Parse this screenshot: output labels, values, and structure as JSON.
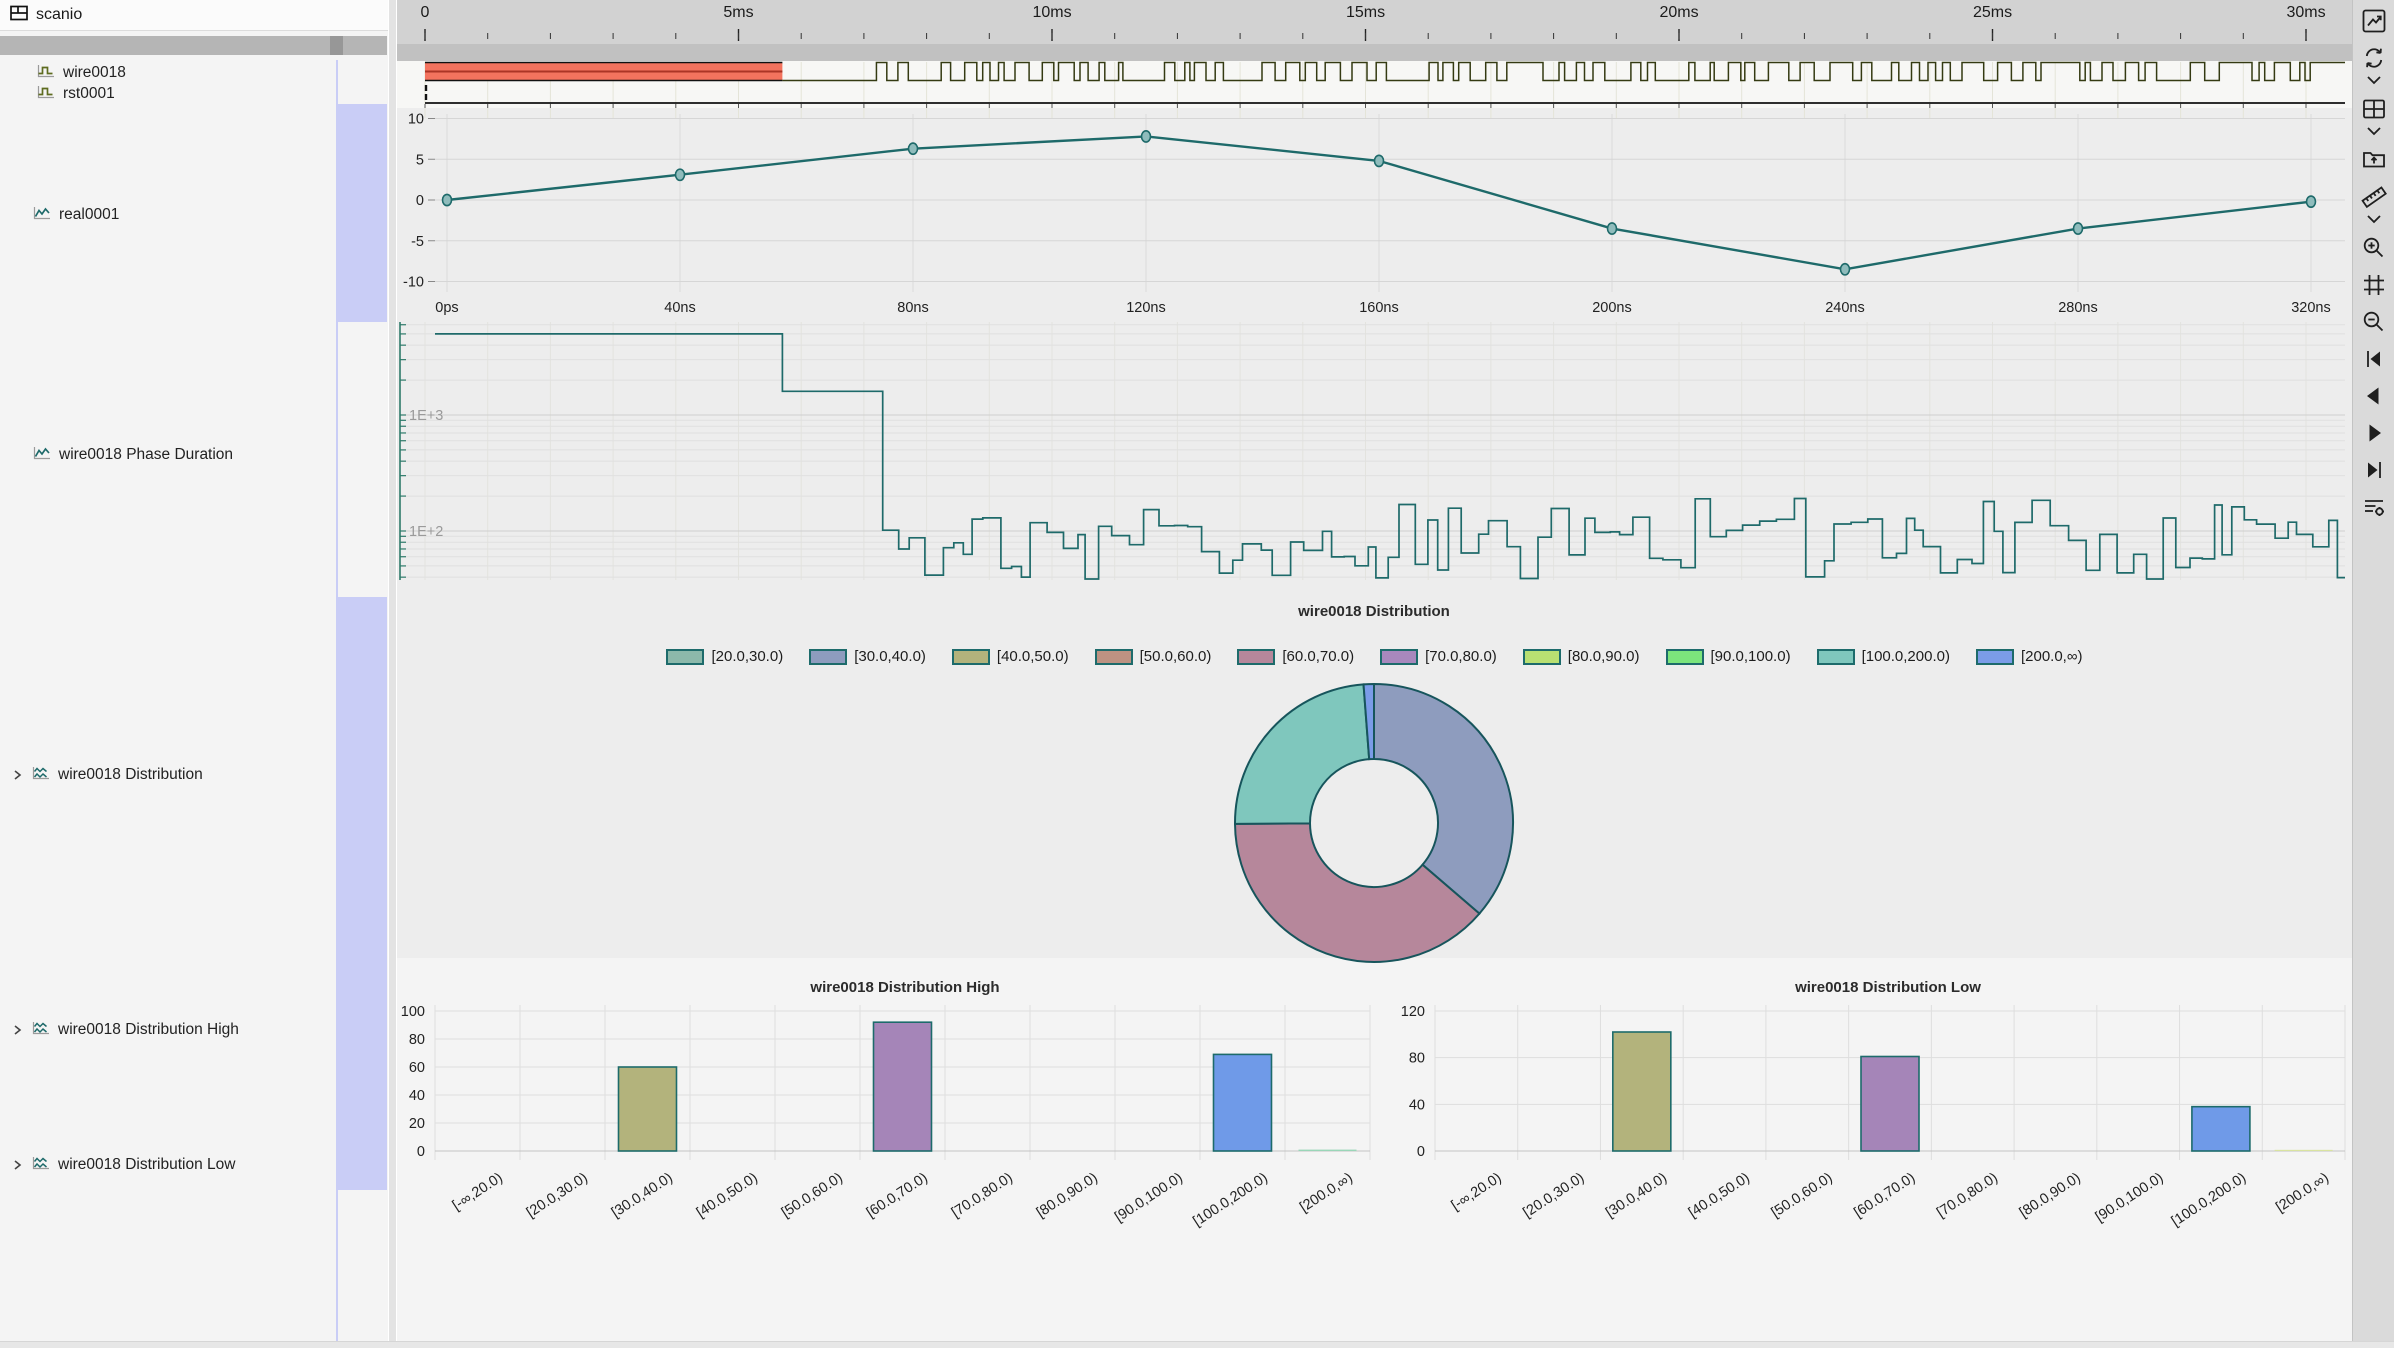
{
  "app": {
    "title": "scanio"
  },
  "sidebar": {
    "signals": [
      {
        "label": "wire0018",
        "icon": "pulse-icon",
        "expandable": false
      },
      {
        "label": "rst0001",
        "icon": "pulse-icon",
        "expandable": false
      },
      {
        "label": "real0001",
        "icon": "line-chart-icon",
        "expandable": false
      },
      {
        "label": "wire0018 Phase Duration",
        "icon": "line-chart-icon",
        "expandable": false
      },
      {
        "label": "wire0018 Distribution",
        "icon": "multi-line-chart-icon",
        "expandable": true
      },
      {
        "label": "wire0018 Distribution High",
        "icon": "multi-line-chart-icon",
        "expandable": true
      },
      {
        "label": "wire0018 Distribution Low",
        "icon": "multi-line-chart-icon",
        "expandable": true
      }
    ]
  },
  "ruler": {
    "tick_labels": [
      "0",
      "5ms",
      "10ms",
      "15ms",
      "20ms",
      "25ms",
      "30ms"
    ]
  },
  "toolbar": {
    "buttons": [
      {
        "name": "waveform-chart"
      },
      {
        "name": "refresh",
        "has_chevron": true
      },
      {
        "name": "layout-grid",
        "has_chevron": true
      },
      {
        "name": "export-folder"
      },
      {
        "name": "measure-ruler",
        "has_chevron": true
      },
      {
        "name": "zoom-in"
      },
      {
        "name": "zoom-fit"
      },
      {
        "name": "zoom-out"
      },
      {
        "name": "jump-start"
      },
      {
        "name": "step-back"
      },
      {
        "name": "step-forward"
      },
      {
        "name": "jump-end"
      },
      {
        "name": "list-options"
      }
    ]
  },
  "waveforms": [
    {
      "name": "wire0018",
      "type": "digital",
      "red_region": {
        "start_ms": 0,
        "end_ms": 5.7
      },
      "toggle_start_ms": 7.2,
      "pattern": "random-toggle",
      "seed": 11
    },
    {
      "name": "rst0001",
      "type": "digital",
      "constant": 0
    }
  ],
  "chart_data": [
    {
      "type": "line",
      "name": "real0001",
      "x_labels": [
        "0ps",
        "40ns",
        "80ns",
        "120ns",
        "160ns",
        "200ns",
        "240ns",
        "280ns",
        "320ns"
      ],
      "values": [
        0,
        3.1,
        6.3,
        7.8,
        4.8,
        -3.5,
        -8.5,
        -3.5,
        -0.2
      ],
      "yticks": [
        10,
        5,
        0,
        -5,
        -10
      ],
      "ylim": [
        -10,
        10
      ],
      "line_color": "#1e6a6a",
      "grid": true,
      "marker": "ellipse"
    },
    {
      "type": "log-step",
      "name": "wire0018 Phase Duration",
      "ytick_labels": [
        "1E+3",
        "1E+2"
      ],
      "plateaus": [
        {
          "value": 5000,
          "end_ms": 5.7
        },
        {
          "value": 1600,
          "end_ms": 7.3
        }
      ],
      "noise": {
        "min": 40,
        "max": 195,
        "seed": 20
      },
      "line_color": "#1e6a6a",
      "grid": true
    },
    {
      "type": "donut",
      "title": "wire0018 Distribution",
      "legend": [
        {
          "label": "[20.0,30.0)",
          "color": "#8cb9ab"
        },
        {
          "label": "[30.0,40.0)",
          "color": "#8e9cbe"
        },
        {
          "label": "[40.0,50.0)",
          "color": "#b3b37c"
        },
        {
          "label": "[50.0,60.0)",
          "color": "#bd9282"
        },
        {
          "label": "[60.0,70.0)",
          "color": "#b6879b"
        },
        {
          "label": "[70.0,80.0)",
          "color": "#a888bd"
        },
        {
          "label": "[80.0,90.0)",
          "color": "#b9e072"
        },
        {
          "label": "[90.0,100.0)",
          "color": "#7ce57c"
        },
        {
          "label": "[100.0,200.0)",
          "color": "#7fc7bd"
        },
        {
          "label": "[200.0,∞)",
          "color": "#7b9ce8"
        }
      ],
      "slices": [
        {
          "label": "[30.0,40.0)",
          "pct": 36.3,
          "color": "#8e9cbe"
        },
        {
          "label": "[60.0,70.0)",
          "pct": 38.6,
          "color": "#b6879b"
        },
        {
          "label": "[100.0,200.0)",
          "pct": 23.9,
          "color": "#7fc7bd"
        },
        {
          "label": "[200.0,∞)",
          "pct": 1.2,
          "color": "#7b9ce8"
        }
      ]
    },
    {
      "type": "bar",
      "title": "wire0018 Distribution High",
      "categories": [
        "[-∞,20.0)",
        "[20.0,30.0)",
        "[30.0,40.0)",
        "[40.0,50.0)",
        "[50.0,60.0)",
        "[60.0,70.0)",
        "[70.0,80.0)",
        "[80.0,90.0)",
        "[90.0,100.0)",
        "[100.0,200.0)",
        "[200.0,∞)"
      ],
      "values": [
        0,
        0,
        60,
        0,
        0,
        92,
        0,
        0,
        0,
        69,
        1
      ],
      "bar_colors": [
        null,
        null,
        "#b3b37c",
        null,
        null,
        "#a585b8",
        null,
        null,
        null,
        "#6f9ae8",
        "#9ad6b8"
      ],
      "yticks": [
        0,
        20,
        40,
        60,
        80,
        100
      ],
      "ylim": [
        0,
        100
      ],
      "grid": true
    },
    {
      "type": "bar",
      "title": "wire0018 Distribution Low",
      "categories": [
        "[-∞,20.0)",
        "[20.0,30.0)",
        "[30.0,40.0)",
        "[40.0,50.0)",
        "[50.0,60.0)",
        "[60.0,70.0)",
        "[70.0,80.0)",
        "[80.0,90.0)",
        "[90.0,100.0)",
        "[100.0,200.0)",
        "[200.0,∞)"
      ],
      "values": [
        0,
        0,
        102,
        0,
        0,
        81,
        0,
        0,
        0,
        38,
        1
      ],
      "bar_colors": [
        null,
        null,
        "#b3b37c",
        null,
        null,
        "#a585b8",
        null,
        null,
        null,
        "#6f9ae8",
        "#d9e3a0"
      ],
      "yticks": [
        0,
        40,
        80,
        120
      ],
      "ylim": [
        0,
        120
      ],
      "grid": true
    }
  ],
  "colors": {
    "accent_teal": "#1e6a6a",
    "wave_trace": "#343a12",
    "wave_red_block": "#f3735e",
    "wave_red_line": "#ab3526",
    "lavender_band": "#c9cdf6",
    "ruler_bg": "#d2d2d2"
  }
}
